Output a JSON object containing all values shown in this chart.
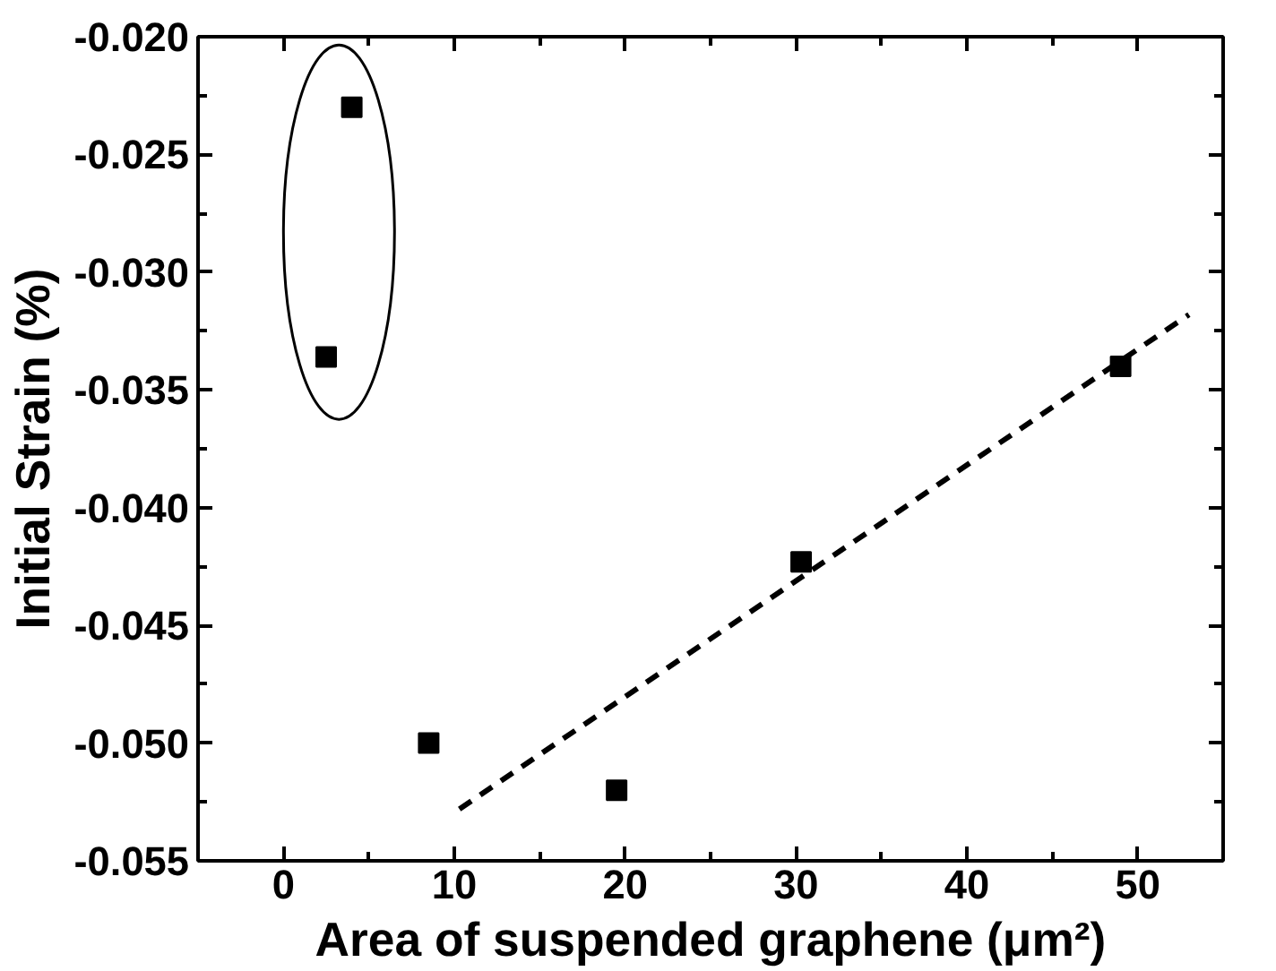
{
  "chart_data": {
    "type": "scatter",
    "xlabel": "Area of suspended graphene (μm²)",
    "ylabel": "Initial Strain (%)",
    "xlim": [
      -5,
      55
    ],
    "ylim": [
      -0.055,
      -0.02
    ],
    "xticks": [
      0,
      10,
      20,
      30,
      40,
      50
    ],
    "yticks": [
      {
        "value": -0.055,
        "label": "-0.055"
      },
      {
        "value": -0.05,
        "label": "-0.050"
      },
      {
        "value": -0.045,
        "label": "-0.045"
      },
      {
        "value": -0.04,
        "label": "-0.040"
      },
      {
        "value": -0.035,
        "label": "-0.035"
      },
      {
        "value": -0.03,
        "label": "-0.030"
      },
      {
        "value": -0.025,
        "label": "-0.025"
      },
      {
        "value": -0.02,
        "label": "-0.020"
      }
    ],
    "grid": false,
    "series": [
      {
        "color": "#000000",
        "marker": "square",
        "x": [
          2.5,
          4,
          8.5,
          19.5,
          30.3,
          49
        ],
        "values": [
          -0.0336,
          -0.023,
          -0.05,
          -0.052,
          -0.0423,
          -0.034
        ]
      },
      {
        "type": "line",
        "color": "#000000",
        "line_style": "dashed",
        "marker": "none",
        "x": [
          10.3,
          53
        ],
        "values": [
          -0.0528,
          -0.0318
        ]
      }
    ]
  }
}
